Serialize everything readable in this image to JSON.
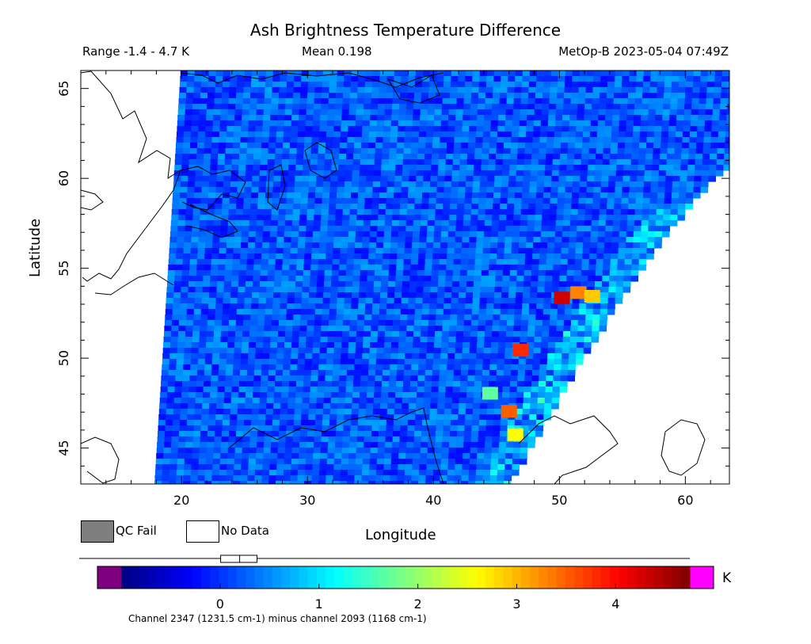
{
  "title": "Ash Brightness Temperature Difference",
  "range_text": "Range -1.4 - 4.7 K",
  "mean_text": "Mean 0.198",
  "satellite_text": "MetOp-B 2023-05-04 07:49Z",
  "legend": {
    "qc_fail": "QC Fail",
    "no_data": "No Data"
  },
  "colorbar": {
    "unit": "K",
    "min": -1.0,
    "max": 4.75,
    "ticks": [
      "0",
      "1",
      "2",
      "3",
      "4"
    ],
    "below_color": "#7f007f",
    "above_color": "#ff00ff",
    "caption": "Channel 2347 (1231.5 cm-1) minus channel 2093 (1168 cm-1)"
  },
  "chart_data": {
    "type": "heatmap",
    "title": "Ash Brightness Temperature Difference",
    "xlabel": "Longitude",
    "ylabel": "Latitude",
    "xlim": [
      12,
      63.5
    ],
    "ylim": [
      43,
      66
    ],
    "x_ticks": [
      20,
      30,
      40,
      50,
      60
    ],
    "y_ticks": [
      45,
      50,
      55,
      60,
      65
    ],
    "value_range": [
      -1.4,
      4.7
    ],
    "mean": 0.198,
    "typical_value": 0.2,
    "hotspots": [
      {
        "lon": 51.5,
        "lat": 53.6,
        "value": 3.3
      },
      {
        "lon": 50.2,
        "lat": 53.3,
        "value": 4.3
      },
      {
        "lon": 52.6,
        "lat": 53.4,
        "value": 2.9
      },
      {
        "lon": 46.9,
        "lat": 50.4,
        "value": 3.8
      },
      {
        "lon": 46.0,
        "lat": 47.0,
        "value": 3.5
      },
      {
        "lon": 46.5,
        "lat": 45.7,
        "value": 2.6
      },
      {
        "lon": 44.5,
        "lat": 48.0,
        "value": 1.7
      }
    ]
  }
}
